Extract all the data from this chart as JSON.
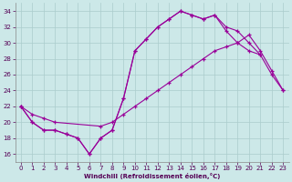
{
  "x_all": [
    0,
    1,
    2,
    3,
    4,
    5,
    6,
    7,
    8,
    9,
    10,
    11,
    12,
    13,
    14,
    15,
    16,
    17,
    18,
    19,
    20,
    21,
    22,
    23
  ],
  "line1_x": [
    0,
    1,
    2,
    3,
    4,
    5,
    6,
    7,
    8,
    9,
    10,
    11,
    12,
    13,
    14,
    15,
    16,
    17,
    18,
    19,
    20,
    21,
    22,
    23
  ],
  "line1_y": [
    22,
    20,
    19,
    19,
    18.5,
    18,
    16,
    18,
    19,
    23,
    29,
    30.5,
    32,
    33,
    34,
    33.5,
    33,
    33.5,
    32,
    31.5,
    30,
    28.5,
    26,
    24
  ],
  "line2_x": [
    0,
    1,
    2,
    3,
    4,
    5,
    6,
    7,
    8,
    9,
    10,
    11,
    12,
    13,
    14,
    15,
    16,
    17,
    18,
    19,
    20,
    21
  ],
  "line2_y": [
    22,
    20,
    19,
    19,
    18.5,
    18,
    16,
    18,
    19,
    23,
    29,
    30.5,
    32,
    33,
    34,
    33.5,
    33,
    33.5,
    31.5,
    30,
    29,
    28.5
  ],
  "line3_x": [
    0,
    1,
    2,
    3,
    7,
    8,
    9,
    10,
    11,
    12,
    13,
    14,
    15,
    16,
    17,
    18,
    19,
    20,
    21,
    22,
    23
  ],
  "line3_y": [
    22,
    21,
    20.5,
    20,
    19.5,
    20,
    21,
    22,
    23,
    24,
    25,
    26,
    27,
    28,
    29,
    29.5,
    30,
    31,
    29,
    26.5,
    24
  ],
  "ylim": [
    15,
    35
  ],
  "yticks": [
    16,
    18,
    20,
    22,
    24,
    26,
    28,
    30,
    32,
    34
  ],
  "xticks": [
    0,
    1,
    2,
    3,
    4,
    5,
    6,
    7,
    8,
    9,
    10,
    11,
    12,
    13,
    14,
    15,
    16,
    17,
    18,
    19,
    20,
    21,
    22,
    23
  ],
  "xlabel": "Windchill (Refroidissement éolien,°C)",
  "line_color": "#990099",
  "bg_color": "#cce8e8",
  "grid_color": "#aacccc"
}
